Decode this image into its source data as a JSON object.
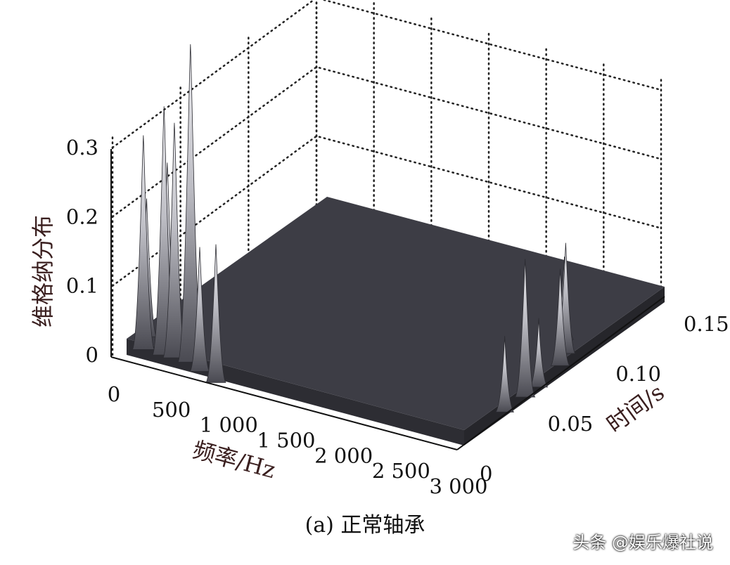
{
  "chart_data": {
    "type": "surface3d",
    "ylabel": "维格纳分布",
    "xlabel": "频率/Hz",
    "tlabel": "时间/s",
    "z_ticks": [
      "0",
      "0.1",
      "0.2",
      "0.3"
    ],
    "x_ticks": [
      "0",
      "500",
      "1 000",
      "1 500",
      "2 000",
      "2 500",
      "3 000"
    ],
    "t_ticks": [
      "0",
      "0.05",
      "0.10",
      "0.15"
    ],
    "zlim": [
      0,
      0.3
    ],
    "xlim": [
      0,
      3000
    ],
    "tlim": [
      0,
      0.15
    ],
    "grid": true,
    "surface_color": "#3d3d45",
    "peaks": [
      {
        "freq": 60,
        "time": 0.02,
        "value": 0.2
      },
      {
        "freq": 150,
        "time": 0.01,
        "value": 0.31
      },
      {
        "freq": 240,
        "time": 0.02,
        "value": 0.26
      },
      {
        "freq": 330,
        "time": 0.01,
        "value": 0.36
      },
      {
        "freq": 420,
        "time": 0.01,
        "value": 0.34
      },
      {
        "freq": 560,
        "time": 0.01,
        "value": 0.46
      },
      {
        "freq": 700,
        "time": 0.005,
        "value": 0.18
      },
      {
        "freq": 900,
        "time": 0.0,
        "value": 0.2
      },
      {
        "freq": 2750,
        "time": 0.1,
        "value": 0.12
      },
      {
        "freq": 2880,
        "time": 0.09,
        "value": 0.16
      },
      {
        "freq": 2950,
        "time": 0.08,
        "value": 0.14
      },
      {
        "freq": 3000,
        "time": 0.06,
        "value": 0.1
      },
      {
        "freq": 3000,
        "time": 0.05,
        "value": 0.2
      },
      {
        "freq": 3000,
        "time": 0.035,
        "value": 0.11
      }
    ]
  },
  "caption": "(a)  正常轴承",
  "watermark": "头条 @娱乐爆社说"
}
